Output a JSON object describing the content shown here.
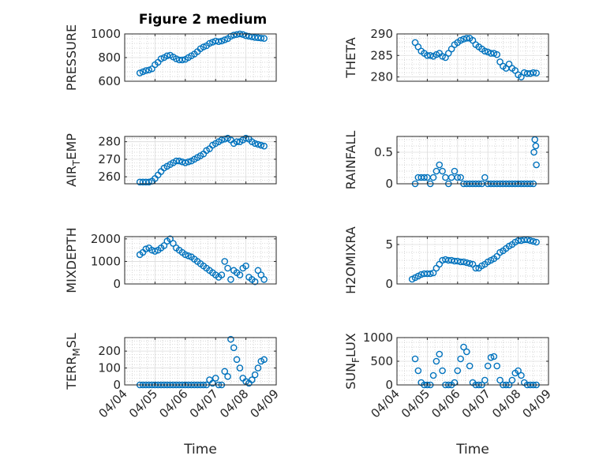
{
  "figure": {
    "title": "Figure 2 medium"
  },
  "colors": {
    "marker": "#0072BD",
    "axes": "#262626",
    "grid": "#c8c8c8"
  },
  "chart_data": [
    {
      "type": "scatter",
      "ylabel": "PRESSURE",
      "xlabel": "",
      "ylim": [
        600,
        1000
      ],
      "yticks": [
        600,
        800,
        1000
      ],
      "xlim": [
        0,
        5
      ],
      "xticks": [
        0,
        1,
        2,
        3,
        4,
        5
      ],
      "xticklabels": [
        "04/04",
        "04/05",
        "04/06",
        "04/07",
        "04/08",
        "04/09"
      ],
      "show_xticklabels": false,
      "grid": true,
      "marker": "circle",
      "series": [
        {
          "x": [
            0.5,
            0.6,
            0.7,
            0.8,
            0.9,
            1.0,
            1.1,
            1.2,
            1.3,
            1.4,
            1.5,
            1.6,
            1.7,
            1.8,
            1.9,
            2.0,
            2.1,
            2.2,
            2.3,
            2.4,
            2.5,
            2.6,
            2.7,
            2.8,
            2.9,
            3.0,
            3.1,
            3.2,
            3.3,
            3.4,
            3.5,
            3.6,
            3.7,
            3.8,
            3.9,
            4.0,
            4.1,
            4.2,
            4.3,
            4.4,
            4.5,
            4.6
          ],
          "y": [
            670,
            680,
            690,
            695,
            705,
            740,
            760,
            790,
            800,
            815,
            820,
            805,
            790,
            780,
            780,
            785,
            800,
            815,
            830,
            850,
            875,
            890,
            900,
            920,
            930,
            940,
            935,
            940,
            950,
            960,
            980,
            990,
            995,
            1000,
            995,
            985,
            980,
            975,
            970,
            968,
            965,
            962
          ]
        }
      ]
    },
    {
      "type": "scatter",
      "ylabel": "THETA",
      "xlabel": "",
      "ylim": [
        279,
        290
      ],
      "yticks": [
        280,
        285,
        290
      ],
      "xlim": [
        0,
        5
      ],
      "xticks": [
        0,
        1,
        2,
        3,
        4,
        5
      ],
      "xticklabels": [
        "04/04",
        "04/05",
        "04/06",
        "04/07",
        "04/08",
        "04/09"
      ],
      "show_xticklabels": false,
      "grid": true,
      "marker": "circle",
      "series": [
        {
          "x": [
            0.6,
            0.7,
            0.8,
            0.9,
            1.0,
            1.1,
            1.2,
            1.3,
            1.4,
            1.5,
            1.6,
            1.7,
            1.8,
            1.9,
            2.0,
            2.1,
            2.2,
            2.3,
            2.4,
            2.5,
            2.6,
            2.7,
            2.8,
            2.9,
            3.0,
            3.1,
            3.2,
            3.3,
            3.4,
            3.5,
            3.6,
            3.7,
            3.8,
            3.9,
            4.0,
            4.1,
            4.2,
            4.3,
            4.4,
            4.5,
            4.6
          ],
          "y": [
            288,
            287,
            286,
            285.5,
            285,
            285,
            284.8,
            285.2,
            285.5,
            284.8,
            284.5,
            285.5,
            286.5,
            287.5,
            288,
            288.5,
            288.8,
            289,
            289,
            288.5,
            287.5,
            287,
            286.5,
            286,
            285.8,
            285.5,
            285.5,
            285.2,
            283.5,
            282.5,
            282,
            283,
            282,
            281.5,
            280.5,
            280,
            281,
            280.8,
            280.8,
            281,
            280.9
          ]
        }
      ]
    },
    {
      "type": "scatter",
      "ylabel": "AIR_TEMP",
      "ylabel_display": {
        "base": "AIR",
        "sub": "T",
        "rest": "EMP"
      },
      "xlabel": "",
      "ylim": [
        256,
        283
      ],
      "yticks": [
        260,
        270,
        280
      ],
      "xlim": [
        0,
        5
      ],
      "xticks": [
        0,
        1,
        2,
        3,
        4,
        5
      ],
      "xticklabels": [
        "04/04",
        "04/05",
        "04/06",
        "04/07",
        "04/08",
        "04/09"
      ],
      "show_xticklabels": false,
      "grid": true,
      "marker": "circle",
      "series": [
        {
          "x": [
            0.5,
            0.6,
            0.7,
            0.8,
            0.9,
            1.0,
            1.1,
            1.2,
            1.3,
            1.4,
            1.5,
            1.6,
            1.7,
            1.8,
            1.9,
            2.0,
            2.1,
            2.2,
            2.3,
            2.4,
            2.5,
            2.6,
            2.7,
            2.8,
            2.9,
            3.0,
            3.1,
            3.2,
            3.3,
            3.4,
            3.5,
            3.6,
            3.7,
            3.8,
            3.9,
            4.0,
            4.1,
            4.2,
            4.3,
            4.4,
            4.5,
            4.6
          ],
          "y": [
            257,
            257,
            257,
            257,
            257.5,
            259,
            261,
            263,
            265,
            266,
            267,
            268,
            269,
            269,
            268.5,
            268,
            268.5,
            269,
            270,
            271,
            272,
            273,
            275,
            276,
            278,
            279,
            280,
            281,
            281.5,
            282,
            281,
            279,
            280,
            280,
            281,
            282,
            281.5,
            280,
            279,
            278.5,
            278,
            277.5
          ]
        }
      ]
    },
    {
      "type": "scatter",
      "ylabel": "RAINFALL",
      "xlabel": "",
      "ylim": [
        0,
        0.75
      ],
      "yticks": [
        0,
        0.5
      ],
      "xlim": [
        0,
        5
      ],
      "xticks": [
        0,
        1,
        2,
        3,
        4,
        5
      ],
      "xticklabels": [
        "04/04",
        "04/05",
        "04/06",
        "04/07",
        "04/08",
        "04/09"
      ],
      "show_xticklabels": false,
      "grid": true,
      "marker": "circle",
      "series": [
        {
          "x": [
            0.6,
            0.7,
            0.8,
            0.9,
            1.0,
            1.1,
            1.2,
            1.3,
            1.4,
            1.5,
            1.6,
            1.7,
            1.8,
            1.9,
            2.0,
            2.1,
            2.2,
            2.3,
            2.4,
            2.5,
            2.6,
            2.7,
            2.8,
            2.9,
            3.0,
            3.1,
            3.2,
            3.3,
            3.4,
            3.5,
            3.6,
            3.7,
            3.8,
            3.9,
            4.0,
            4.1,
            4.2,
            4.3,
            4.4,
            4.5,
            4.52,
            4.55,
            4.58,
            4.6
          ],
          "y": [
            0,
            0.1,
            0.1,
            0.1,
            0.1,
            0,
            0.1,
            0.2,
            0.3,
            0.2,
            0.1,
            0,
            0.1,
            0.2,
            0.1,
            0.1,
            0,
            0,
            0,
            0,
            0,
            0,
            0,
            0.1,
            0,
            0,
            0,
            0,
            0,
            0,
            0,
            0,
            0,
            0,
            0,
            0,
            0,
            0,
            0,
            0,
            0.5,
            0.7,
            0.6,
            0.3
          ]
        }
      ]
    },
    {
      "type": "scatter",
      "ylabel": "MIXDEPTH",
      "xlabel": "",
      "ylim": [
        0,
        2100
      ],
      "yticks": [
        0,
        1000,
        2000
      ],
      "xlim": [
        0,
        5
      ],
      "xticks": [
        0,
        1,
        2,
        3,
        4,
        5
      ],
      "xticklabels": [
        "04/04",
        "04/05",
        "04/06",
        "04/07",
        "04/08",
        "04/09"
      ],
      "show_xticklabels": false,
      "grid": true,
      "marker": "circle",
      "series": [
        {
          "x": [
            0.5,
            0.6,
            0.7,
            0.8,
            0.9,
            1.0,
            1.1,
            1.2,
            1.3,
            1.4,
            1.5,
            1.6,
            1.7,
            1.8,
            1.9,
            2.0,
            2.1,
            2.2,
            2.3,
            2.4,
            2.5,
            2.6,
            2.7,
            2.8,
            2.9,
            3.0,
            3.1,
            3.2,
            3.3,
            3.4,
            3.5,
            3.6,
            3.7,
            3.8,
            3.9,
            4.0,
            4.1,
            4.2,
            4.3,
            4.4,
            4.5,
            4.6
          ],
          "y": [
            1300,
            1400,
            1550,
            1600,
            1500,
            1450,
            1500,
            1600,
            1700,
            1900,
            2000,
            1800,
            1600,
            1500,
            1400,
            1300,
            1250,
            1200,
            1100,
            1000,
            900,
            800,
            700,
            600,
            500,
            400,
            300,
            400,
            1000,
            700,
            200,
            600,
            500,
            400,
            700,
            800,
            300,
            200,
            100,
            600,
            400,
            200
          ]
        }
      ]
    },
    {
      "type": "scatter",
      "ylabel": "H2OMIXRA",
      "xlabel": "",
      "ylim": [
        0,
        6
      ],
      "yticks": [
        0,
        5
      ],
      "xlim": [
        0,
        5
      ],
      "xticks": [
        0,
        1,
        2,
        3,
        4,
        5
      ],
      "xticklabels": [
        "04/04",
        "04/05",
        "04/06",
        "04/07",
        "04/08",
        "04/09"
      ],
      "show_xticklabels": false,
      "grid": true,
      "marker": "circle",
      "series": [
        {
          "x": [
            0.5,
            0.6,
            0.7,
            0.8,
            0.9,
            1.0,
            1.1,
            1.2,
            1.3,
            1.4,
            1.5,
            1.6,
            1.7,
            1.8,
            1.9,
            2.0,
            2.1,
            2.2,
            2.3,
            2.4,
            2.5,
            2.6,
            2.7,
            2.8,
            2.9,
            3.0,
            3.1,
            3.2,
            3.3,
            3.4,
            3.5,
            3.6,
            3.7,
            3.8,
            3.9,
            4.0,
            4.1,
            4.2,
            4.3,
            4.4,
            4.5,
            4.6
          ],
          "y": [
            0.6,
            0.8,
            1.0,
            1.2,
            1.3,
            1.3,
            1.3,
            1.4,
            2.0,
            2.5,
            3.0,
            3.1,
            3.0,
            3.0,
            2.9,
            2.9,
            2.8,
            2.8,
            2.7,
            2.6,
            2.5,
            2.0,
            2.0,
            2.3,
            2.5,
            2.8,
            3.0,
            3.2,
            3.5,
            4.0,
            4.2,
            4.5,
            4.8,
            5.0,
            5.3,
            5.5,
            5.5,
            5.6,
            5.6,
            5.5,
            5.4,
            5.3
          ]
        }
      ]
    },
    {
      "type": "scatter",
      "ylabel": "TERR_MSL",
      "ylabel_display": {
        "base": "TERR",
        "sub": "M",
        "rest": "SL"
      },
      "xlabel": "Time",
      "ylim": [
        0,
        280
      ],
      "yticks": [
        0,
        100,
        200
      ],
      "xlim": [
        0,
        5
      ],
      "xticks": [
        0,
        1,
        2,
        3,
        4,
        5
      ],
      "xticklabels": [
        "04/04",
        "04/05",
        "04/06",
        "04/07",
        "04/08",
        "04/09"
      ],
      "show_xticklabels": true,
      "grid": true,
      "marker": "circle",
      "series": [
        {
          "x": [
            0.5,
            0.6,
            0.7,
            0.8,
            0.9,
            1.0,
            1.1,
            1.2,
            1.3,
            1.4,
            1.5,
            1.6,
            1.7,
            1.8,
            1.9,
            2.0,
            2.1,
            2.2,
            2.3,
            2.4,
            2.5,
            2.6,
            2.7,
            2.8,
            2.9,
            3.0,
            3.1,
            3.2,
            3.3,
            3.4,
            3.5,
            3.6,
            3.7,
            3.8,
            3.9,
            4.0,
            4.1,
            4.2,
            4.3,
            4.4,
            4.5,
            4.6
          ],
          "y": [
            0,
            0,
            0,
            0,
            0,
            0,
            0,
            0,
            0,
            0,
            0,
            0,
            0,
            0,
            0,
            0,
            0,
            0,
            0,
            0,
            0,
            0,
            0,
            30,
            10,
            40,
            0,
            0,
            80,
            50,
            270,
            220,
            150,
            100,
            40,
            20,
            10,
            30,
            60,
            100,
            140,
            150
          ]
        }
      ]
    },
    {
      "type": "scatter",
      "ylabel": "SUN_FLUX",
      "ylabel_display": {
        "base": "SUN",
        "sub": "F",
        "rest": "LUX"
      },
      "xlabel": "Time",
      "ylim": [
        0,
        1000
      ],
      "yticks": [
        0,
        500,
        1000
      ],
      "xlim": [
        0,
        5
      ],
      "xticks": [
        0,
        1,
        2,
        3,
        4,
        5
      ],
      "xticklabels": [
        "04/04",
        "04/05",
        "04/06",
        "04/07",
        "04/08",
        "04/09"
      ],
      "show_xticklabels": true,
      "grid": true,
      "marker": "circle",
      "series": [
        {
          "x": [
            0.6,
            0.7,
            0.8,
            0.9,
            1.0,
            1.1,
            1.2,
            1.3,
            1.4,
            1.5,
            1.6,
            1.7,
            1.8,
            1.9,
            2.0,
            2.1,
            2.2,
            2.3,
            2.4,
            2.5,
            2.6,
            2.7,
            2.8,
            2.9,
            3.0,
            3.1,
            3.2,
            3.3,
            3.4,
            3.5,
            3.6,
            3.7,
            3.8,
            3.9,
            4.0,
            4.1,
            4.2,
            4.3,
            4.4,
            4.5,
            4.6
          ],
          "y": [
            550,
            300,
            50,
            0,
            0,
            0,
            200,
            500,
            650,
            300,
            0,
            0,
            0,
            50,
            300,
            550,
            800,
            700,
            400,
            50,
            0,
            0,
            0,
            100,
            400,
            580,
            600,
            400,
            100,
            0,
            0,
            0,
            100,
            250,
            300,
            200,
            50,
            0,
            0,
            0,
            0
          ]
        }
      ]
    }
  ]
}
